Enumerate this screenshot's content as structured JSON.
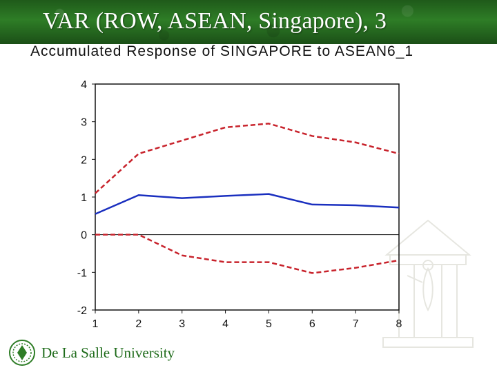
{
  "slide": {
    "title": "VAR (ROW, ASEAN, Singapore), 3"
  },
  "footer": {
    "university": "De La Salle University"
  },
  "colors": {
    "header_green": "#2e7d26",
    "response_line": "#1a2fbf",
    "band_line": "#c8232c",
    "brand_text": "#1e6b1a"
  },
  "chart_data": {
    "type": "line",
    "title": "Accumulated Response of SINGAPORE to ASEAN6_1",
    "xlabel": "",
    "ylabel": "",
    "x": [
      1,
      2,
      3,
      4,
      5,
      6,
      7,
      8
    ],
    "x_tick_labels": [
      "1",
      "2",
      "3",
      "4",
      "5",
      "6",
      "7",
      "8"
    ],
    "y_tick_labels": [
      "4",
      "3",
      "2",
      "1",
      "0",
      "-1",
      "-2"
    ],
    "y_ticks": [
      4,
      3,
      2,
      1,
      0,
      -1,
      -2
    ],
    "ylim": [
      -2,
      4
    ],
    "xlim": [
      1,
      8
    ],
    "zero_line": true,
    "grid": false,
    "series": [
      {
        "values": [
          0.55,
          1.05,
          0.97,
          1.03,
          1.08,
          0.8,
          0.78,
          0.72
        ],
        "color": "#1a2fbf",
        "style": "solid"
      },
      {
        "values": [
          1.1,
          2.15,
          2.5,
          2.85,
          2.95,
          2.62,
          2.45,
          2.15
        ],
        "color": "#c8232c",
        "style": "dashed"
      },
      {
        "values": [
          0.0,
          0.0,
          -0.55,
          -0.73,
          -0.73,
          -1.02,
          -0.88,
          -0.68
        ],
        "color": "#c8232c",
        "style": "dashed"
      }
    ]
  }
}
